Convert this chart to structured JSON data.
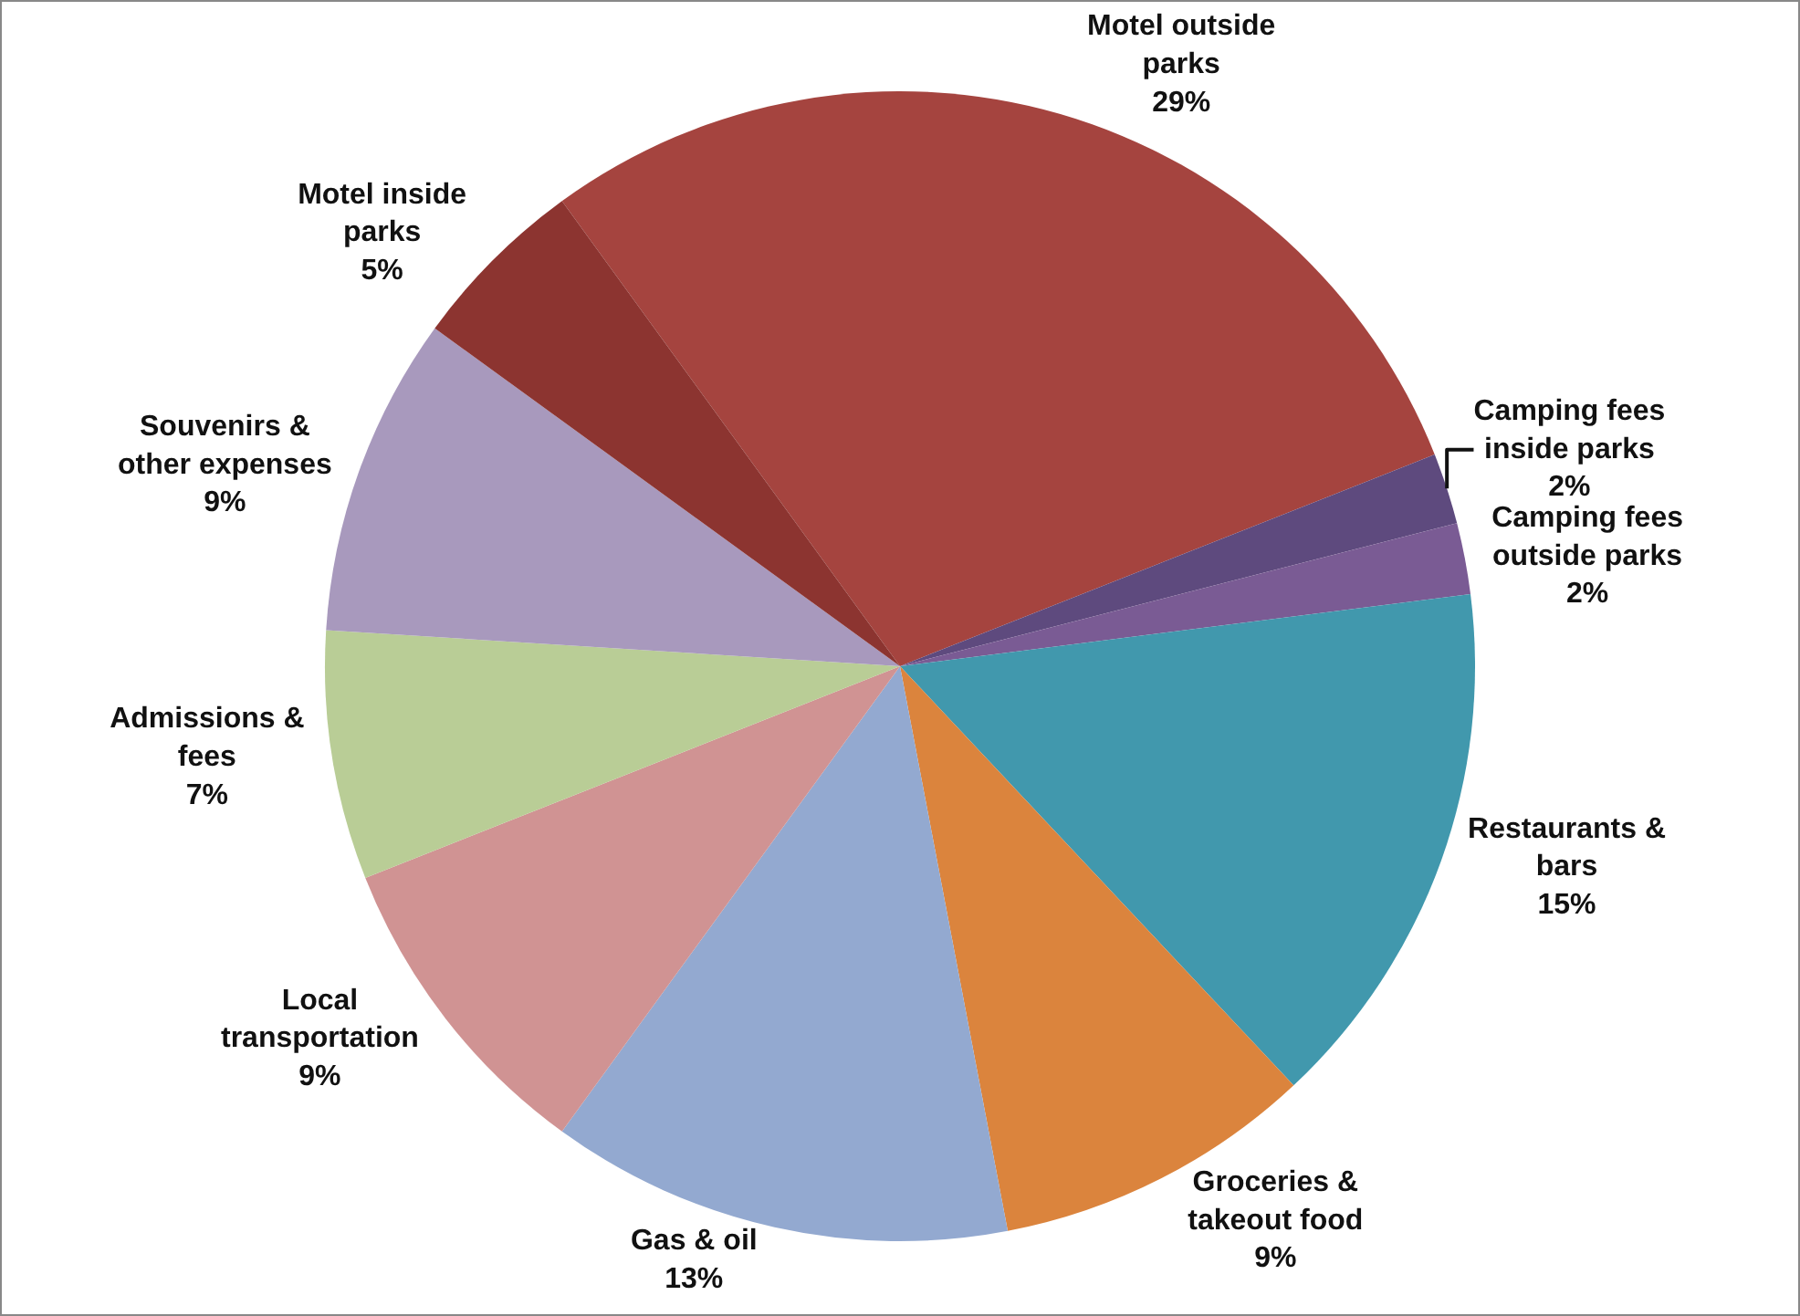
{
  "chart_data": {
    "type": "pie",
    "categories": [
      "Motel outside parks",
      "Camping fees inside parks",
      "Camping fees outside parks",
      "Restaurants & bars",
      "Groceries & takeout food",
      "Gas & oil",
      "Local transportation",
      "Admissions & fees",
      "Souvenirs & other expenses",
      "Motel inside parks"
    ],
    "values": [
      29,
      2,
      2,
      15,
      9,
      13,
      9,
      7,
      9,
      5
    ],
    "value_labels": [
      "29%",
      "2%",
      "2%",
      "15%",
      "9%",
      "13%",
      "9%",
      "7%",
      "9%",
      "5%"
    ],
    "colors": [
      "#a5443f",
      "#5e4a7e",
      "#7a5b94",
      "#4198ad",
      "#db843d",
      "#93a9d0",
      "#d09393",
      "#b9cd96",
      "#a899bd",
      "#8c3430"
    ],
    "legend": false
  }
}
